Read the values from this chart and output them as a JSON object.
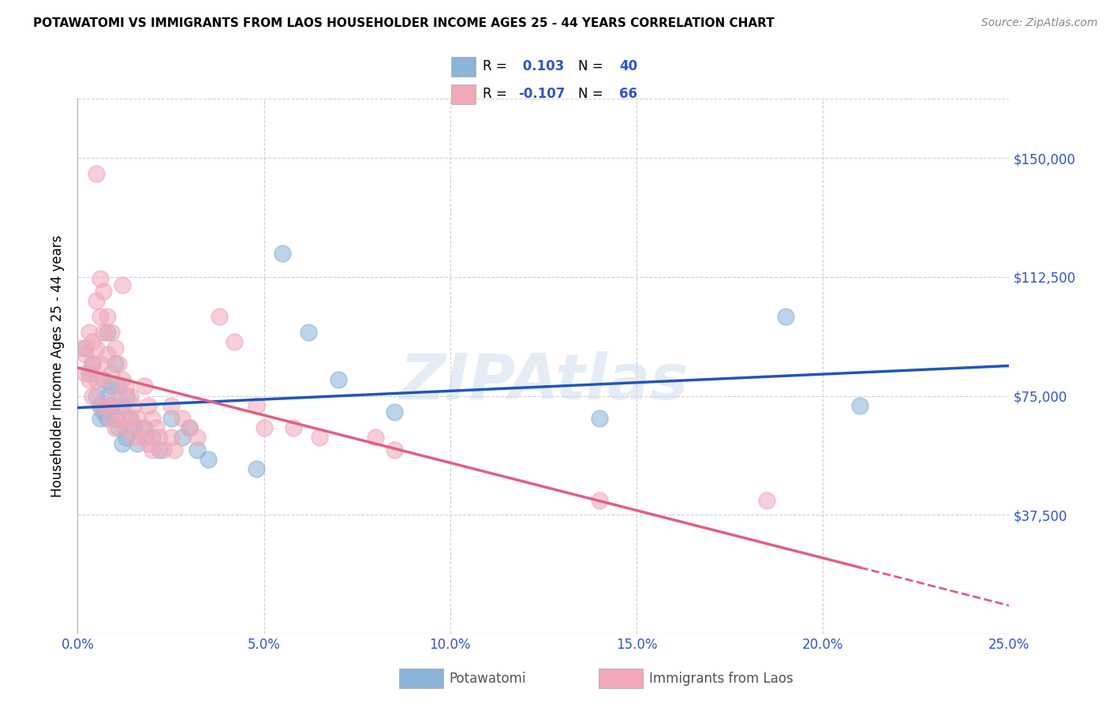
{
  "title": "POTAWATOMI VS IMMIGRANTS FROM LAOS HOUSEHOLDER INCOME AGES 25 - 44 YEARS CORRELATION CHART",
  "source": "Source: ZipAtlas.com",
  "ylabel": "Householder Income Ages 25 - 44 years",
  "xlabel_ticks": [
    "0.0%",
    "5.0%",
    "10.0%",
    "15.0%",
    "20.0%",
    "25.0%"
  ],
  "xlabel_vals": [
    0.0,
    0.05,
    0.1,
    0.15,
    0.2,
    0.25
  ],
  "yticks": [
    0,
    37500,
    75000,
    112500,
    150000
  ],
  "xlim": [
    0.0,
    0.25
  ],
  "ylim": [
    0,
    168750
  ],
  "blue_R": 0.103,
  "blue_N": 40,
  "pink_R": -0.107,
  "pink_N": 66,
  "watermark": "ZIPAtlas",
  "blue_color": "#8ab4d8",
  "pink_color": "#f2a8b8",
  "blue_line_color": "#2255bb",
  "pink_line_color": "#e06080",
  "blue_scatter": [
    [
      0.002,
      90000
    ],
    [
      0.003,
      82000
    ],
    [
      0.004,
      85000
    ],
    [
      0.005,
      75000
    ],
    [
      0.006,
      72000
    ],
    [
      0.006,
      68000
    ],
    [
      0.007,
      80000
    ],
    [
      0.007,
      70000
    ],
    [
      0.008,
      95000
    ],
    [
      0.008,
      75000
    ],
    [
      0.008,
      68000
    ],
    [
      0.009,
      78000
    ],
    [
      0.009,
      72000
    ],
    [
      0.01,
      85000
    ],
    [
      0.01,
      68000
    ],
    [
      0.011,
      78000
    ],
    [
      0.011,
      65000
    ],
    [
      0.012,
      72000
    ],
    [
      0.012,
      60000
    ],
    [
      0.013,
      75000
    ],
    [
      0.013,
      62000
    ],
    [
      0.014,
      68000
    ],
    [
      0.015,
      65000
    ],
    [
      0.016,
      60000
    ],
    [
      0.018,
      65000
    ],
    [
      0.02,
      62000
    ],
    [
      0.022,
      58000
    ],
    [
      0.025,
      68000
    ],
    [
      0.028,
      62000
    ],
    [
      0.03,
      65000
    ],
    [
      0.032,
      58000
    ],
    [
      0.035,
      55000
    ],
    [
      0.048,
      52000
    ],
    [
      0.055,
      120000
    ],
    [
      0.062,
      95000
    ],
    [
      0.07,
      80000
    ],
    [
      0.085,
      70000
    ],
    [
      0.14,
      68000
    ],
    [
      0.19,
      100000
    ],
    [
      0.21,
      72000
    ]
  ],
  "pink_scatter": [
    [
      0.001,
      90000
    ],
    [
      0.002,
      88000
    ],
    [
      0.002,
      82000
    ],
    [
      0.003,
      95000
    ],
    [
      0.003,
      80000
    ],
    [
      0.004,
      92000
    ],
    [
      0.004,
      85000
    ],
    [
      0.004,
      75000
    ],
    [
      0.005,
      145000
    ],
    [
      0.005,
      105000
    ],
    [
      0.005,
      90000
    ],
    [
      0.005,
      80000
    ],
    [
      0.006,
      112000
    ],
    [
      0.006,
      100000
    ],
    [
      0.006,
      85000
    ],
    [
      0.006,
      72000
    ],
    [
      0.007,
      108000
    ],
    [
      0.007,
      95000
    ],
    [
      0.007,
      80000
    ],
    [
      0.008,
      100000
    ],
    [
      0.008,
      88000
    ],
    [
      0.008,
      72000
    ],
    [
      0.009,
      95000
    ],
    [
      0.009,
      82000
    ],
    [
      0.009,
      68000
    ],
    [
      0.01,
      90000
    ],
    [
      0.01,
      75000
    ],
    [
      0.01,
      65000
    ],
    [
      0.011,
      85000
    ],
    [
      0.011,
      72000
    ],
    [
      0.012,
      110000
    ],
    [
      0.012,
      80000
    ],
    [
      0.012,
      68000
    ],
    [
      0.013,
      78000
    ],
    [
      0.013,
      65000
    ],
    [
      0.014,
      75000
    ],
    [
      0.014,
      68000
    ],
    [
      0.015,
      72000
    ],
    [
      0.015,
      62000
    ],
    [
      0.016,
      68000
    ],
    [
      0.017,
      65000
    ],
    [
      0.018,
      78000
    ],
    [
      0.018,
      62000
    ],
    [
      0.019,
      72000
    ],
    [
      0.019,
      60000
    ],
    [
      0.02,
      68000
    ],
    [
      0.02,
      58000
    ],
    [
      0.021,
      65000
    ],
    [
      0.022,
      62000
    ],
    [
      0.023,
      58000
    ],
    [
      0.025,
      72000
    ],
    [
      0.025,
      62000
    ],
    [
      0.026,
      58000
    ],
    [
      0.028,
      68000
    ],
    [
      0.03,
      65000
    ],
    [
      0.032,
      62000
    ],
    [
      0.038,
      100000
    ],
    [
      0.042,
      92000
    ],
    [
      0.048,
      72000
    ],
    [
      0.05,
      65000
    ],
    [
      0.058,
      65000
    ],
    [
      0.065,
      62000
    ],
    [
      0.08,
      62000
    ],
    [
      0.085,
      58000
    ],
    [
      0.14,
      42000
    ],
    [
      0.185,
      42000
    ]
  ]
}
